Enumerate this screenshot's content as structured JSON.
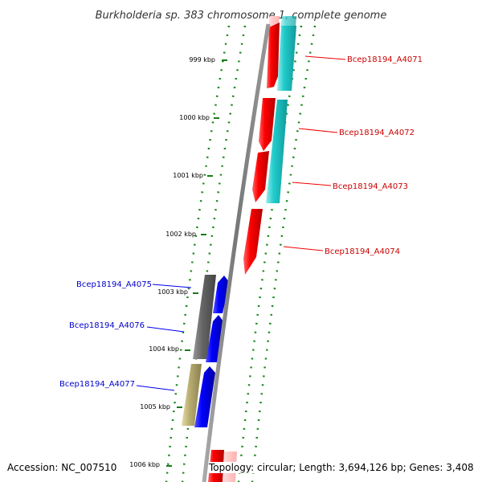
{
  "title": "Burkholderia sp. 383 chromosome 1, complete genome",
  "ticks": [
    "999 kbp",
    "1000 kbp",
    "1001 kbp",
    "1002 kbp",
    "1003 kbp",
    "1004 kbp",
    "1005 kbp",
    "1006 kbp"
  ],
  "genes": [
    {
      "id": "Bcep18194_A4071",
      "strand": "forward",
      "color": "#cc0000"
    },
    {
      "id": "Bcep18194_A4072",
      "strand": "forward",
      "color": "#cc0000"
    },
    {
      "id": "Bcep18194_A4073",
      "strand": "forward",
      "color": "#cc0000"
    },
    {
      "id": "Bcep18194_A4074",
      "strand": "forward",
      "color": "#cc0000"
    },
    {
      "id": "Bcep18194_A4075",
      "strand": "reverse",
      "color": "#0000cc"
    },
    {
      "id": "Bcep18194_A4076",
      "strand": "reverse",
      "color": "#0000cc"
    },
    {
      "id": "Bcep18194_A4077",
      "strand": "reverse",
      "color": "#0000cc"
    }
  ],
  "colors": {
    "forward_cds": "#ff0000",
    "reverse_cds": "#0000ff",
    "forward_feature": "#22cccc",
    "reverse_feature_dark": "#666666",
    "reverse_feature_khaki": "#b8ad70",
    "backbone": "#888888",
    "ticks": "#1a7a1a"
  },
  "footer": {
    "accession": "Accession: NC_007510",
    "summary": "Topology: circular; Length: 3,694,126 bp; Genes: 3,408"
  }
}
